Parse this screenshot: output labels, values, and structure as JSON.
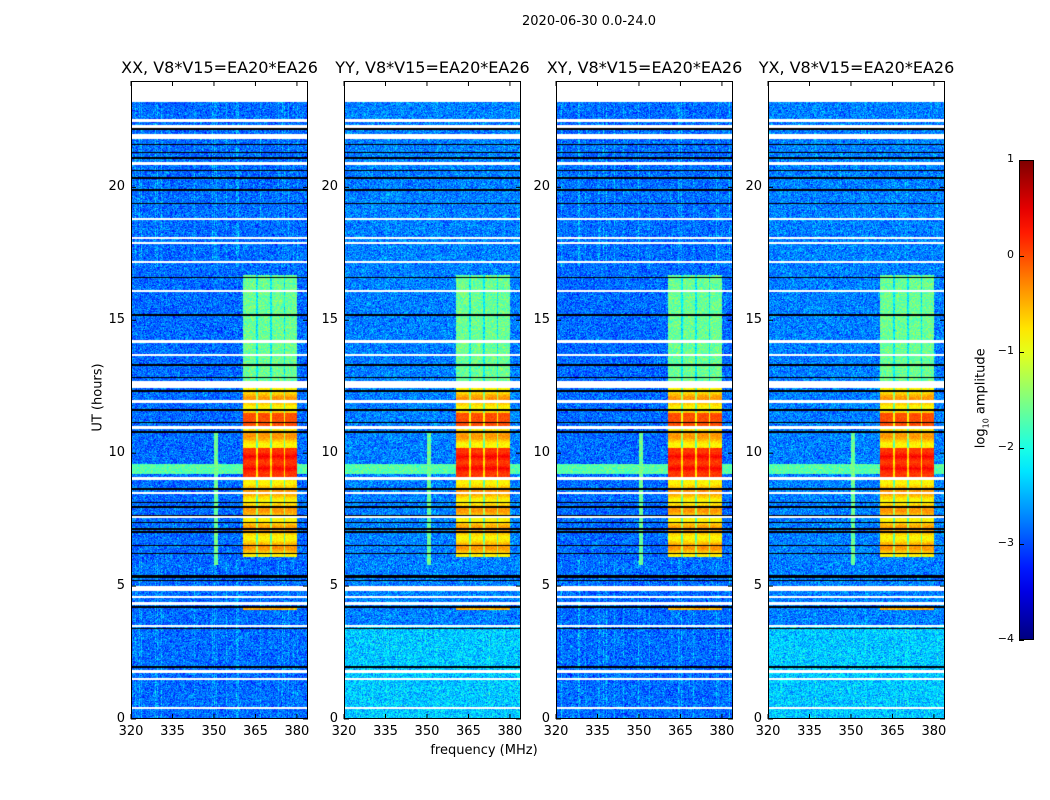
{
  "figure": {
    "suptitle": "2020-06-30 0.0-24.0",
    "xlabel": "frequency (MHz)",
    "ylabel": "UT (hours)",
    "colorbar_label_main": "log",
    "colorbar_label_sub": "10",
    "colorbar_label_rest": " amplitude"
  },
  "chart_data": {
    "type": "heatmap",
    "colormap": "jet",
    "x_axis": {
      "label": "frequency (MHz)",
      "range": [
        320,
        384
      ],
      "ticks": [
        320,
        335,
        350,
        365,
        380
      ]
    },
    "y_axis": {
      "label": "UT (hours)",
      "range": [
        0,
        24
      ],
      "ticks": [
        0,
        5,
        10,
        15,
        20
      ],
      "data_end": 23.2
    },
    "colorbar": {
      "label": "log10 amplitude",
      "range": [
        -4,
        1
      ],
      "ticks": [
        -4,
        -3,
        -2,
        -1,
        0,
        1
      ]
    },
    "panels": [
      {
        "title": "XX, V8*V15=EA20*EA26",
        "background": -2.85,
        "low_hours_boost": 0.0,
        "channel_lines": true
      },
      {
        "title": "YY, V8*V15=EA20*EA26",
        "background": -2.75,
        "low_hours_boost": 0.35,
        "channel_lines": false
      },
      {
        "title": "XY, V8*V15=EA20*EA26",
        "background": -2.85,
        "low_hours_boost": 0.0,
        "channel_lines": true
      },
      {
        "title": "YX, V8*V15=EA20*EA26",
        "background": -2.75,
        "low_hours_boost": 0.35,
        "channel_lines": false
      }
    ],
    "flagged_white_hours": [
      22.52,
      22.29,
      21.97,
      21.87,
      20.89,
      18.8,
      18.1,
      17.9,
      17.2,
      16.1,
      14.2,
      13.7,
      12.6,
      12.5,
      11.94,
      10.97,
      9.04,
      8.5,
      7.6,
      4.95,
      4.85,
      4.6,
      4.35,
      3.5,
      1.78,
      1.5,
      0.42
    ],
    "flagged_black_hours": [
      22.19,
      21.62,
      21.31,
      21.1,
      20.64,
      20.35,
      19.9,
      19.4,
      16.6,
      15.2,
      13.32,
      12.85,
      12.34,
      11.62,
      11.16,
      10.8,
      8.65,
      8.15,
      7.97,
      7.65,
      7.4,
      7.15,
      7.03,
      6.53,
      6.22,
      5.4,
      5.34,
      5.22,
      4.21,
      3.4,
      1.96
    ],
    "rfi_block": {
      "freq": [
        360.5,
        380
      ],
      "subband_gaps_mhz": [
        365.5,
        370.5,
        375.5
      ],
      "strong_hours": [
        6.1,
        12.5
      ],
      "strong_level": -0.6,
      "peak_hours": [
        9.1,
        10.2
      ],
      "peak_level": 0.4,
      "moderate_hours": [
        12.7,
        16.7
      ],
      "moderate_level": -1.6
    },
    "rfi_line": {
      "freq": [
        350,
        351.5
      ],
      "hours": [
        5.8,
        10.8
      ],
      "level": -1.6
    },
    "rfi_band": {
      "hours": [
        9.2,
        9.6
      ],
      "level": -1.7
    }
  }
}
